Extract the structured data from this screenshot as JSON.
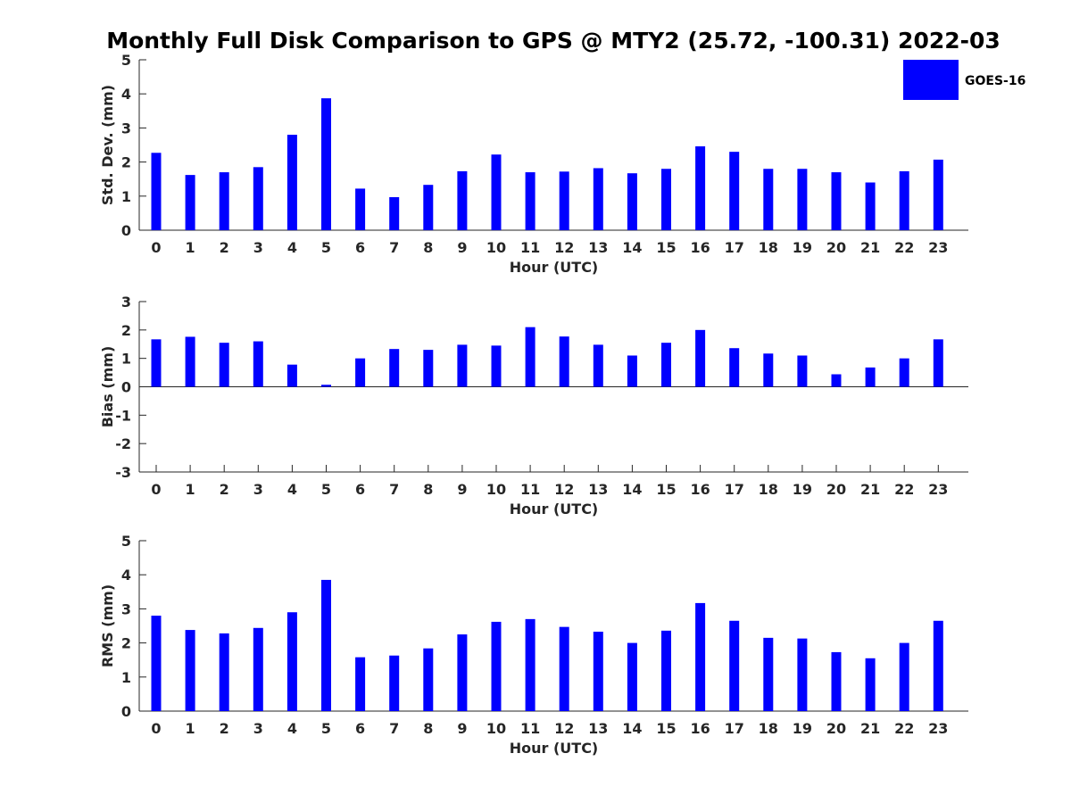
{
  "chart_data": {
    "type": "bar",
    "title": "Monthly Full Disk Comparison to GPS @ MTY2 (25.72, -100.31) 2022-03",
    "legend": {
      "label": "GOES-16",
      "color": "#0000ff",
      "placement": "top-right"
    },
    "categories": [
      "0",
      "1",
      "2",
      "3",
      "4",
      "5",
      "6",
      "7",
      "8",
      "9",
      "10",
      "11",
      "12",
      "13",
      "14",
      "15",
      "16",
      "17",
      "18",
      "19",
      "20",
      "21",
      "22",
      "23"
    ],
    "panels": [
      {
        "id": "std",
        "ylabel": "Std. Dev. (mm)",
        "xlabel": "Hour (UTC)",
        "ylim": [
          0,
          5
        ],
        "yticks": [
          0,
          1,
          2,
          3,
          4,
          5
        ],
        "series": [
          {
            "name": "GOES-16",
            "values": [
              2.27,
              1.62,
              1.7,
              1.85,
              2.8,
              3.87,
              1.22,
              0.97,
              1.33,
              1.73,
              2.22,
              1.7,
              1.72,
              1.82,
              1.67,
              1.8,
              2.46,
              2.3,
              1.8,
              1.8,
              1.7,
              1.4,
              1.73,
              2.07
            ]
          }
        ]
      },
      {
        "id": "bias",
        "ylabel": "Bias (mm)",
        "xlabel": "Hour (UTC)",
        "ylim": [
          -3,
          3
        ],
        "yticks": [
          -3,
          -2,
          -1,
          0,
          1,
          2,
          3
        ],
        "series": [
          {
            "name": "GOES-16",
            "values": [
              1.67,
              1.76,
              1.55,
              1.6,
              0.78,
              0.07,
              1.0,
              1.33,
              1.3,
              1.48,
              1.45,
              2.1,
              1.77,
              1.48,
              1.1,
              1.55,
              2.0,
              1.36,
              1.17,
              1.1,
              0.44,
              0.68,
              1.0,
              1.67
            ]
          }
        ]
      },
      {
        "id": "rms",
        "ylabel": "RMS (mm)",
        "xlabel": "Hour (UTC)",
        "ylim": [
          0,
          5
        ],
        "yticks": [
          0,
          1,
          2,
          3,
          4,
          5
        ],
        "series": [
          {
            "name": "GOES-16",
            "values": [
              2.8,
              2.38,
              2.28,
              2.44,
              2.9,
              3.85,
              1.58,
              1.63,
              1.84,
              2.25,
              2.62,
              2.7,
              2.47,
              2.33,
              2.0,
              2.36,
              3.17,
              2.65,
              2.15,
              2.13,
              1.73,
              1.55,
              2.0,
              2.65
            ]
          }
        ]
      }
    ]
  }
}
